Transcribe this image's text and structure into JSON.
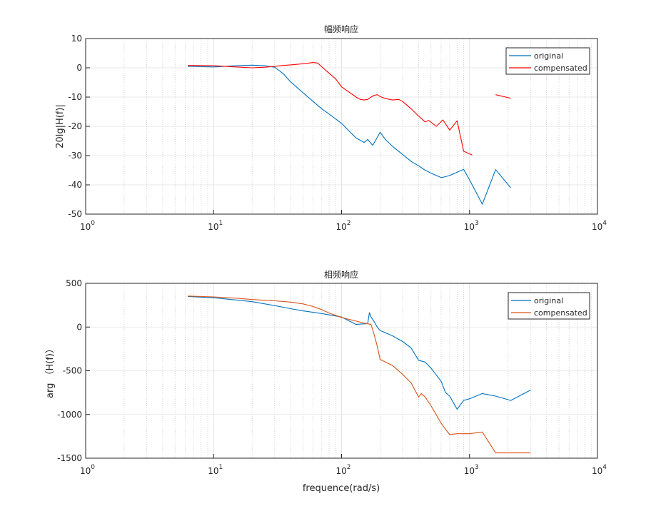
{
  "chart_data": [
    {
      "type": "line",
      "title": "幅频响应",
      "xlabel": "",
      "ylabel": "20lg|H(f)|",
      "xscale": "log",
      "xlim": [
        1,
        10000
      ],
      "ylim": [
        -50,
        10
      ],
      "xticks": [
        1,
        10,
        100,
        1000,
        10000
      ],
      "xtick_labels": [
        {
          "base": "10",
          "exp": "0"
        },
        {
          "base": "10",
          "exp": "1"
        },
        {
          "base": "10",
          "exp": "2"
        },
        {
          "base": "10",
          "exp": "3"
        },
        {
          "base": "10",
          "exp": "4"
        }
      ],
      "yticks": [
        10,
        0,
        -10,
        -20,
        -30,
        -40,
        -50
      ],
      "ytick_labels": [
        "10",
        "0",
        "-10",
        "-20",
        "-30",
        "-40",
        "-50"
      ],
      "grid": true,
      "legend_position": "top-right",
      "series": [
        {
          "name": "original",
          "color": "#0072BD",
          "x": [
            6.28,
            10,
            15,
            20,
            25,
            30,
            35,
            40,
            50,
            60,
            70,
            80,
            100,
            120,
            130,
            150,
            160,
            175,
            190,
            200,
            220,
            250,
            300,
            350,
            400,
            450,
            500,
            600,
            650,
            700,
            900,
            1000,
            1260,
            1600,
            2100
          ],
          "y": [
            0.5,
            0.3,
            0.7,
            0.9,
            0.7,
            0.2,
            -2,
            -4.8,
            -8.5,
            -11.5,
            -14,
            -15.8,
            -19,
            -22.5,
            -24,
            -25.5,
            -24.5,
            -26.5,
            -23.8,
            -22,
            -24.5,
            -26.8,
            -29.6,
            -32,
            -33.5,
            -35,
            -36,
            -37.5,
            -37.2,
            -36.8,
            -34.7,
            -38.3,
            -46.6,
            -34.8,
            -41
          ]
        },
        {
          "name": "compensated",
          "color": "#FF0000",
          "x": [
            6.28,
            10,
            15,
            20,
            25,
            30,
            35,
            40,
            50,
            55,
            60,
            65,
            75,
            90,
            100,
            130,
            140,
            150,
            160,
            170,
            180,
            190,
            200,
            220,
            250,
            280,
            300,
            350,
            400,
            450,
            480,
            550,
            620,
            700,
            800,
            900,
            1050,
            null,
            1600,
            2100
          ],
          "y": [
            0.8,
            0.7,
            0.3,
            0,
            0.2,
            0.5,
            0.8,
            1,
            1.4,
            1.6,
            1.8,
            1.6,
            -0.8,
            -3.8,
            -6.5,
            -10,
            -10.8,
            -11,
            -10.8,
            -10,
            -9.4,
            -9.2,
            -9.8,
            -10.5,
            -11,
            -10.8,
            -11.5,
            -14,
            -16.5,
            -18.5,
            -18,
            -20,
            -17.8,
            -21.3,
            -18.1,
            -28.5,
            -29.8,
            null,
            -9.2,
            -10.4
          ]
        }
      ]
    },
    {
      "type": "line",
      "title": "相频响应",
      "xlabel": "frequence(rad/s)",
      "ylabel": "arg （H(f)）",
      "xscale": "log",
      "xlim": [
        1,
        10000
      ],
      "ylim": [
        -1500,
        500
      ],
      "xticks": [
        1,
        10,
        100,
        1000,
        10000
      ],
      "xtick_labels": [
        {
          "base": "10",
          "exp": "0"
        },
        {
          "base": "10",
          "exp": "1"
        },
        {
          "base": "10",
          "exp": "2"
        },
        {
          "base": "10",
          "exp": "3"
        },
        {
          "base": "10",
          "exp": "4"
        }
      ],
      "yticks": [
        500,
        0,
        -500,
        -1000,
        -1500
      ],
      "ytick_labels": [
        "500",
        "0",
        "-500",
        "-1000",
        "-1500"
      ],
      "grid": true,
      "legend_position": "top-right",
      "series": [
        {
          "name": "original",
          "color": "#0072BD",
          "x": [
            6.28,
            10,
            15,
            20,
            30,
            40,
            50,
            70,
            100,
            130,
            160,
            165,
            170,
            180,
            190,
            200,
            250,
            300,
            350,
            400,
            450,
            500,
            600,
            650,
            700,
            800,
            900,
            1000,
            1260,
            1600,
            2100,
            3000
          ],
          "y": [
            350,
            335,
            310,
            290,
            245,
            210,
            185,
            155,
            115,
            30,
            40,
            165,
            115,
            60,
            0,
            -40,
            -100,
            -165,
            -240,
            -380,
            -400,
            -470,
            -620,
            -750,
            -790,
            -940,
            -840,
            -820,
            -760,
            -790,
            -840,
            -720
          ]
        },
        {
          "name": "compensated",
          "color": "#D95319",
          "x": [
            6.28,
            10,
            15,
            20,
            30,
            40,
            50,
            60,
            70,
            80,
            100,
            120,
            150,
            170,
            180,
            190,
            200,
            250,
            300,
            350,
            400,
            420,
            450,
            500,
            600,
            650,
            700,
            800,
            900,
            1000,
            1260,
            1600,
            2100,
            3000
          ],
          "y": [
            355,
            345,
            330,
            315,
            300,
            285,
            265,
            235,
            200,
            160,
            110,
            80,
            45,
            30,
            -90,
            -220,
            -370,
            -440,
            -540,
            -640,
            -800,
            -760,
            -800,
            -900,
            -1100,
            -1170,
            -1230,
            -1220,
            -1220,
            -1220,
            -1200,
            -1440,
            -1440,
            -1440
          ]
        }
      ]
    }
  ]
}
